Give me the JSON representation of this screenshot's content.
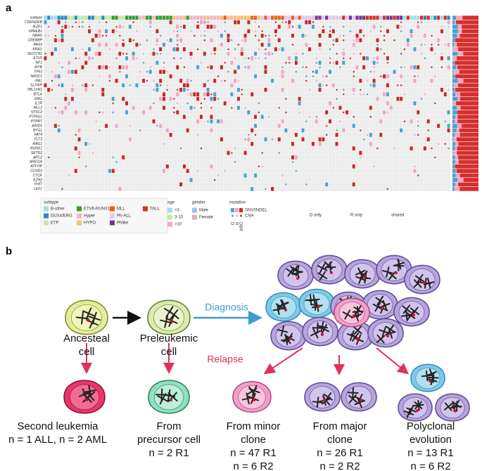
{
  "panel_a": {
    "label": "a",
    "rows": [
      "subtype",
      "CDKN2A/B",
      "IKZF1",
      "VPREB1",
      "NRAS",
      "CREBBP",
      "PAX5",
      "KRAS",
      "NOTCH1",
      "ETV6",
      "NF1",
      "MYB",
      "TP53",
      "NR3C1",
      "RB1",
      "SLX4IP",
      "TBL1XR1",
      "BTLA",
      "ERG",
      "IL7R",
      "MLL2",
      "NT5C2",
      "PTPN11",
      "PTPRT",
      "ARID5",
      "BTG1",
      "FAT4",
      "FLT3",
      "RAG1",
      "RUNX1",
      "SETD2",
      "APC2",
      "ARID1A",
      "ATF7IP",
      "CCND3",
      "CTCF",
      "EZH2",
      "FHIT",
      "LEF1"
    ],
    "legend": {
      "subtype": {
        "title": "subtype",
        "items": [
          {
            "label": "B-other",
            "color": "#a6d8ec"
          },
          {
            "label": "DUX4/ERG",
            "color": "#2b8cbe"
          },
          {
            "label": "ETP",
            "color": "#c7e9a0"
          },
          {
            "label": "ETV6-RUNX1",
            "color": "#33a02c"
          },
          {
            "label": "Hyper",
            "color": "#f4b6c2"
          },
          {
            "label": "HYPO",
            "color": "#fdbf6f"
          },
          {
            "label": "MLL",
            "color": "#e8601c"
          },
          {
            "label": "Ph-ALL",
            "color": "#e7c6e8"
          },
          {
            "label": "Phlike",
            "color": "#7b3294"
          },
          {
            "label": "TALL",
            "color": "#d7301f"
          }
        ]
      },
      "age": {
        "title": "age",
        "items": [
          {
            "label": "<3",
            "color": "#a6d8ec"
          },
          {
            "label": "3-10",
            "color": "#c7e9a0"
          },
          {
            "label": ">10",
            "color": "#f4a6c8"
          }
        ]
      },
      "gender": {
        "title": "gender",
        "items": [
          {
            "label": "Male",
            "color": "#8ecae6"
          },
          {
            "label": "Female",
            "color": "#f4a6c2"
          }
        ]
      },
      "mutation": {
        "title": "mutation",
        "items": [
          {
            "label": "SNV/INDEL"
          },
          {
            "label": "CNA"
          }
        ],
        "columns": [
          "D",
          "R",
          "D&R"
        ]
      }
    },
    "side_legend": [
      {
        "label": "D only",
        "color": "#4aa3cf"
      },
      {
        "label": "R only",
        "color": "#f4a6c2"
      },
      {
        "label": "shared",
        "color": "#d32f2f"
      }
    ]
  },
  "panel_b": {
    "label": "b",
    "diagnosis": "Diagnosis",
    "relapse": "Relapse",
    "origins": [
      [
        "Ancesteal",
        "cell"
      ],
      [
        "Preleukemic",
        "cell"
      ]
    ],
    "outcomes": [
      {
        "title": [
          "Second leukemia"
        ],
        "counts": [
          "n = 1 ALL, n = 2 AML"
        ]
      },
      {
        "title": [
          "From",
          "precursor cell"
        ],
        "counts": [
          "n = 2 R1"
        ]
      },
      {
        "title": [
          "From minor",
          "clone"
        ],
        "counts": [
          "n = 47 R1",
          "n = 6 R2"
        ]
      },
      {
        "title": [
          "From major",
          "clone"
        ],
        "counts": [
          "n = 26 R1",
          "n = 2 R2"
        ]
      },
      {
        "title": [
          "Polyclonal",
          "evolution"
        ],
        "counts": [
          "n = 13 R1",
          "n = 6 R2"
        ]
      }
    ]
  }
}
